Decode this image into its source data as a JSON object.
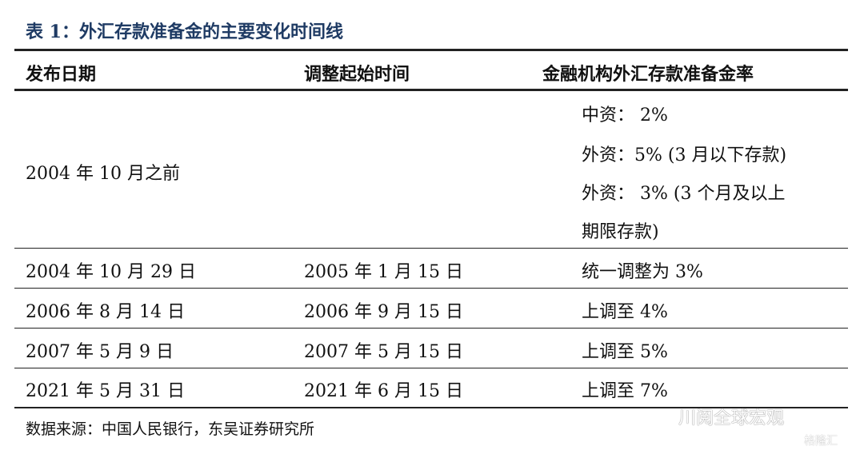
{
  "title": "表 1：外汇存款准备金的主要变化时间线",
  "headers": [
    "发布日期",
    "调整起始时间",
    "金融机构外汇存款准备金率"
  ],
  "first_row": {
    "date": "2004 年 10 月之前",
    "start": "",
    "rates": [
      "中资： 2%",
      "外资：5% (3 月以下存款)",
      "外资： 3% (3 个月及以上",
      "期限存款)"
    ]
  },
  "rows": [
    {
      "date": "2004 年 10 月 29 日",
      "start": "2005 年 1 月 15 日",
      "rate": "统一调整为 3%"
    },
    {
      "date": "2006 年 8 月 14 日",
      "start": "2006 年 9 月 15 日",
      "rate": "上调至 4%"
    },
    {
      "date": "2007 年 5 月 9 日",
      "start": "2007 年 5 月 15 日",
      "rate": "上调至 5%"
    },
    {
      "date": "2021 年 5 月 31 日",
      "start": "2021 年 6 月 15 日",
      "rate": "上调至 7%"
    }
  ],
  "source": "数据来源：中国人民银行，东吴证券研究所",
  "watermark": "川阅全球宏观",
  "watermark2": "格隆汇",
  "colors": {
    "title": "#1f3b64"
  }
}
